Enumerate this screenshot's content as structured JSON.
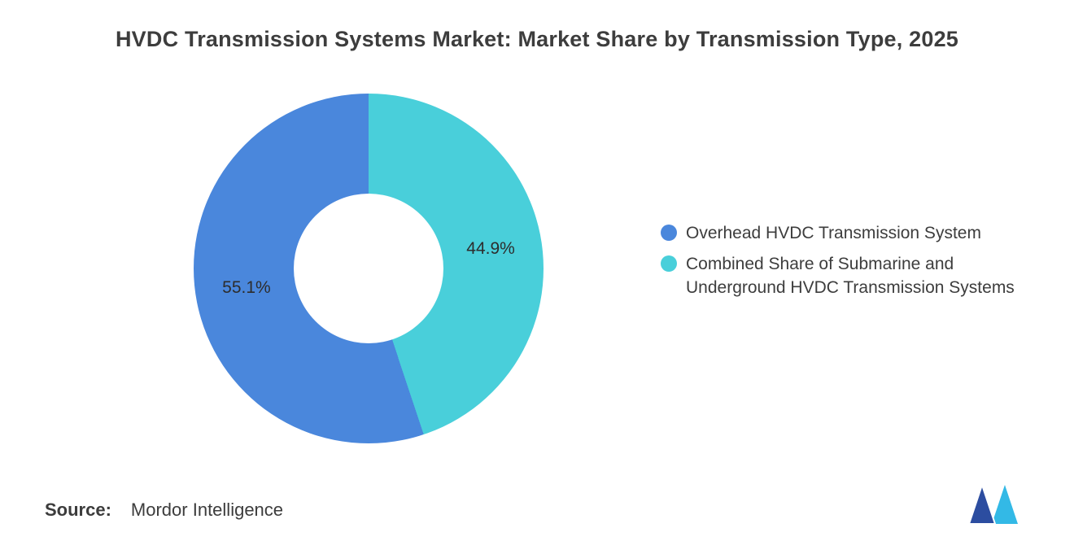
{
  "page": {
    "background": "#ffffff"
  },
  "title": "HVDC Transmission Systems Market: Market Share by Transmission Type, 2025",
  "chart_data": {
    "type": "pie",
    "donut": true,
    "start_angle_deg": 0,
    "direction": "clockwise",
    "unit": "%",
    "title": "HVDC Transmission Systems Market: Market Share by Transmission Type, 2025",
    "slices": [
      {
        "label": "Combined Share of Submarine and Underground HVDC Transmission Systems",
        "value": 44.9,
        "display": "44.9%",
        "color": "#49CFDA"
      },
      {
        "label": "Overhead HVDC Transmission System",
        "value": 55.1,
        "display": "55.1%",
        "color": "#4A87DC"
      }
    ],
    "legend": [
      {
        "label": "Overhead HVDC Transmission System",
        "color": "#4A87DC"
      },
      {
        "label": "Combined Share of Submarine and\nUnderground HVDC Transmission Systems",
        "color": "#49CFDA"
      }
    ],
    "legend_position": "right"
  },
  "footer": {
    "source_label": "Source:",
    "source_value": "Mordor Intelligence"
  },
  "logo": {
    "name": "mordor-intelligence-logo",
    "navy": "#2C4DA0",
    "cyan": "#33B9E6"
  }
}
